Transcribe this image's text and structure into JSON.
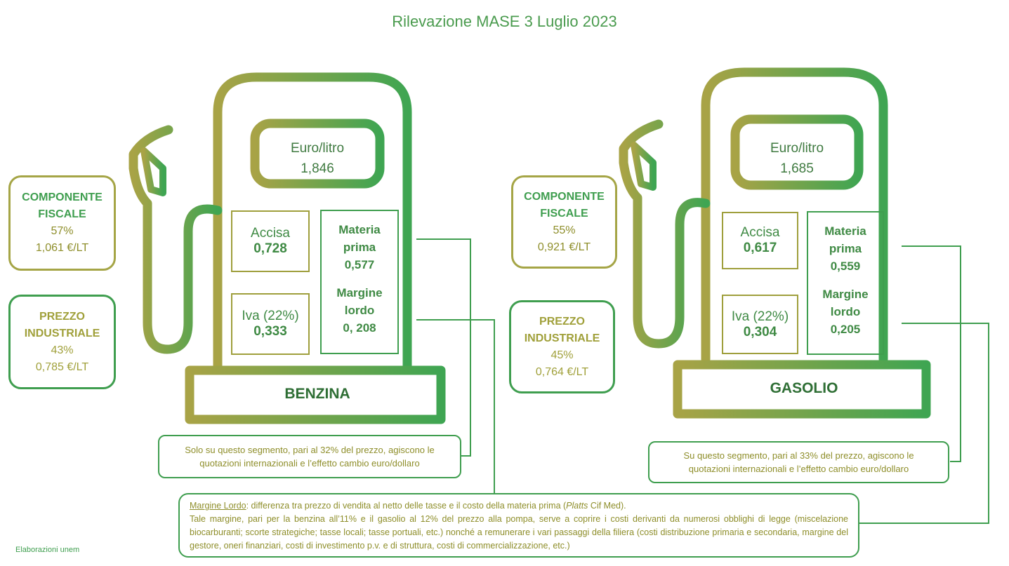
{
  "title": "Rilevazione MASE 3 Luglio 2023",
  "benzina": {
    "name": "BENZINA",
    "price_label": "Euro/litro",
    "price_value": "1,846",
    "fiscal": {
      "line1": "COMPONENTE",
      "line2": "FISCALE",
      "pct": "57%",
      "value": "1,061 €/LT"
    },
    "industrial": {
      "line1": "PREZZO",
      "line2": "INDUSTRIALE",
      "pct": "43%",
      "value": "0,785 €/LT"
    },
    "accisa": {
      "label": "Accisa",
      "value": "0,728"
    },
    "iva": {
      "label": "Iva (22%)",
      "value": "0,333"
    },
    "materia": {
      "line1": "Materia",
      "line2": "prima",
      "value": "0,577"
    },
    "margine": {
      "line1": "Margine",
      "line2": "lordo",
      "value": "0, 208"
    },
    "note_line1": "Solo su questo segmento, pari al 32% del prezzo, agiscono le",
    "note_line2": "quotazioni internazionali e l’effetto cambio euro/dollaro"
  },
  "gasolio": {
    "name": "GASOLIO",
    "price_label": "Euro/litro",
    "price_value": "1,685",
    "fiscal": {
      "line1": "COMPONENTE",
      "line2": "FISCALE",
      "pct": "55%",
      "value": "0,921 €/LT"
    },
    "industrial": {
      "line1": "PREZZO",
      "line2": "INDUSTRIALE",
      "pct": "45%",
      "value": "0,764 €/LT"
    },
    "accisa": {
      "label": "Accisa",
      "value": "0,617"
    },
    "iva": {
      "label": "Iva (22%)",
      "value": "0,304"
    },
    "materia": {
      "line1": "Materia",
      "line2": "prima",
      "value": "0,559"
    },
    "margine": {
      "line1": "Margine",
      "line2": "lordo",
      "value": "0,205"
    },
    "note_line1": "Su questo segmento, pari al 33% del prezzo, agiscono le",
    "note_line2": "quotazioni internazionali e l’effetto cambio euro/dollaro"
  },
  "margin_note": {
    "term": "Margine Lordo",
    "def_a": ": differenza tra prezzo di vendita al netto delle tasse e il costo della materia prima (",
    "def_italic": "Platts",
    "def_b": " Cif Med).",
    "body": "Tale margine, pari per la benzina all’11% e il gasolio al 12% del prezzo alla pompa, serve a coprire i costi derivanti da numerosi obblighi di legge (miscelazione biocarburanti; scorte strategiche; tasse locali; tasse portuali, etc.) nonché a remunerare i vari passaggi della filiera (costi distribuzione primaria e secondaria, margine del gestore, oneri finanziari, costi di investimento p.v. e di struttura, costi di commercializzazione, etc.)"
  },
  "footer": "Elaborazioni unem",
  "colors": {
    "olive": "#a5a546",
    "green": "#3f9e4f"
  }
}
